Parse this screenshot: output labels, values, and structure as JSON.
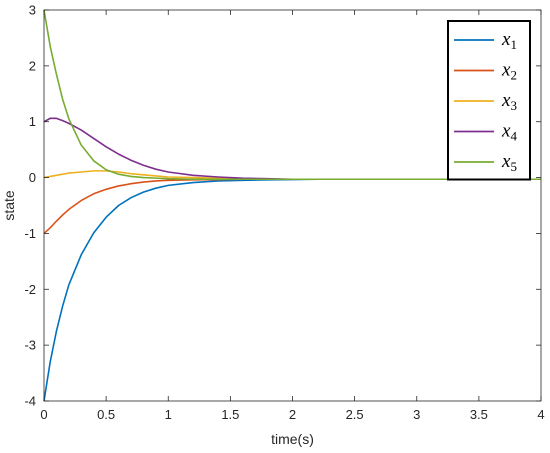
{
  "chart_data": {
    "type": "line",
    "title": "",
    "xlabel": "time(s)",
    "ylabel": "state",
    "xlim": [
      0,
      4
    ],
    "ylim": [
      -4,
      3
    ],
    "xticks": [
      "0",
      "0.5",
      "1",
      "1.5",
      "2",
      "2.5",
      "3",
      "3.5",
      "4"
    ],
    "yticks": [
      "-4",
      "-3",
      "-2",
      "-1",
      "0",
      "1",
      "2",
      "3"
    ],
    "grid": false,
    "legend_position": "top-right",
    "x": [
      0,
      0.05,
      0.1,
      0.15,
      0.2,
      0.3,
      0.4,
      0.5,
      0.6,
      0.7,
      0.8,
      0.9,
      1.0,
      1.2,
      1.4,
      1.6,
      1.8,
      2.0,
      2.2,
      2.5,
      3.0,
      3.5,
      4.0
    ],
    "series": [
      {
        "name": "x1",
        "label_base": "x",
        "label_sub": "1",
        "color": "#0072BD",
        "values": [
          -4.0,
          -3.3,
          -2.75,
          -2.3,
          -1.92,
          -1.38,
          -0.99,
          -0.71,
          -0.5,
          -0.36,
          -0.26,
          -0.19,
          -0.14,
          -0.09,
          -0.06,
          -0.05,
          -0.04,
          -0.035,
          -0.03,
          -0.03,
          -0.03,
          -0.03,
          -0.03
        ]
      },
      {
        "name": "x2",
        "label_base": "x",
        "label_sub": "2",
        "color": "#D95319",
        "values": [
          -1.0,
          -0.9,
          -0.78,
          -0.67,
          -0.57,
          -0.41,
          -0.29,
          -0.21,
          -0.15,
          -0.11,
          -0.08,
          -0.06,
          -0.05,
          -0.04,
          -0.035,
          -0.03,
          -0.03,
          -0.03,
          -0.03,
          -0.03,
          -0.03,
          -0.03,
          -0.03
        ]
      },
      {
        "name": "x3",
        "label_base": "x",
        "label_sub": "3",
        "color": "#EDB120",
        "values": [
          0.0,
          0.02,
          0.04,
          0.06,
          0.08,
          0.1,
          0.12,
          0.12,
          0.1,
          0.07,
          0.05,
          0.03,
          0.01,
          0.0,
          -0.01,
          -0.02,
          -0.03,
          -0.03,
          -0.03,
          -0.03,
          -0.03,
          -0.03,
          -0.03
        ]
      },
      {
        "name": "x4",
        "label_base": "x",
        "label_sub": "4",
        "color": "#7E2F8E",
        "values": [
          1.0,
          1.06,
          1.06,
          1.02,
          0.97,
          0.85,
          0.7,
          0.55,
          0.42,
          0.31,
          0.22,
          0.15,
          0.1,
          0.04,
          0.01,
          -0.01,
          -0.02,
          -0.03,
          -0.03,
          -0.03,
          -0.03,
          -0.03,
          -0.03
        ]
      },
      {
        "name": "x5",
        "label_base": "x",
        "label_sub": "5",
        "color": "#77AC30",
        "values": [
          3.0,
          2.35,
          1.85,
          1.4,
          1.05,
          0.58,
          0.3,
          0.14,
          0.06,
          0.02,
          0.0,
          -0.01,
          -0.02,
          -0.03,
          -0.03,
          -0.03,
          -0.03,
          -0.03,
          -0.03,
          -0.03,
          -0.03,
          -0.03,
          -0.03
        ]
      }
    ]
  }
}
